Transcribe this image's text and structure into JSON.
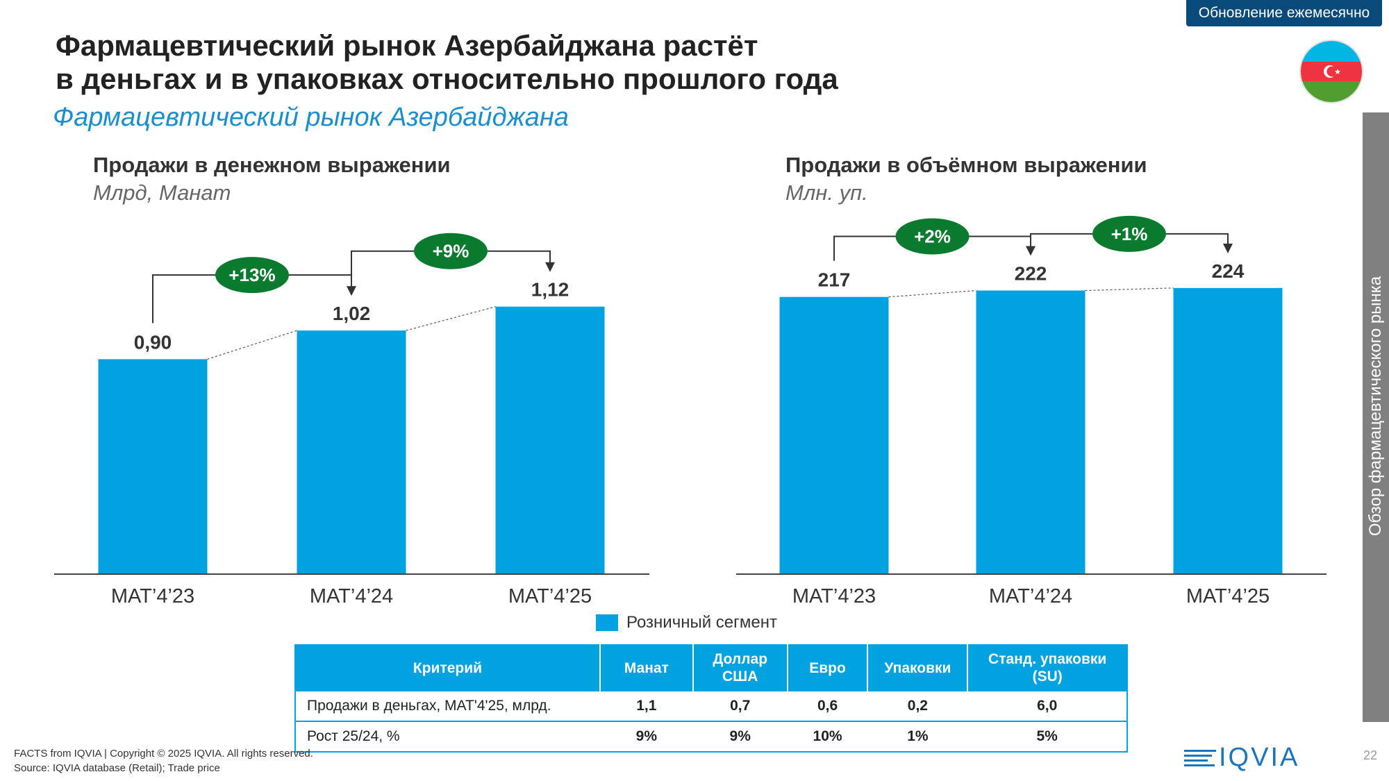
{
  "header": {
    "update_badge": "Обновление ежемесячно",
    "title_line1": "Фармацевтический рынок Азербайджана растёт",
    "title_line2": "в деньгах и в упаковках относительно прошлого года",
    "subtitle": "Фармацевтический рынок Азербайджана"
  },
  "side_tab": "Обзор фармацевтического рынка",
  "legend": {
    "label": "Розничный сегмент",
    "color": "#00a2e0"
  },
  "chart_data": [
    {
      "type": "bar",
      "title": "Продажи в денежном выражении",
      "unit": "Млрд, Манат",
      "categories": [
        "MAT’4’23",
        "MAT’4’24",
        "MAT’4’25"
      ],
      "values": [
        0.9,
        1.02,
        1.12
      ],
      "value_labels": [
        "0,90",
        "1,02",
        "1,12"
      ],
      "ylim": [
        0,
        1.25
      ],
      "growth": [
        {
          "from": 0,
          "to": 1,
          "label": "+13%"
        },
        {
          "from": 1,
          "to": 2,
          "label": "+9%"
        }
      ]
    },
    {
      "type": "bar",
      "title": "Продажи в объёмном выражении",
      "unit": "Млн. уп.",
      "categories": [
        "MAT’4’23",
        "MAT’4’24",
        "MAT’4’25"
      ],
      "values": [
        217,
        222,
        224
      ],
      "value_labels": [
        "217",
        "222",
        "224"
      ],
      "ylim": [
        0,
        225
      ],
      "growth": [
        {
          "from": 0,
          "to": 1,
          "label": "+2%"
        },
        {
          "from": 1,
          "to": 2,
          "label": "+1%"
        }
      ]
    }
  ],
  "table": {
    "headers": [
      "Критерий",
      "Манат",
      "Доллар США",
      "Евро",
      "Упаковки",
      "Станд. упаковки (SU)"
    ],
    "rows": [
      [
        "Продажи в деньгах,  MAT'4'25, млрд.",
        "1,1",
        "0,7",
        "0,6",
        "0,2",
        "6,0"
      ],
      [
        "Рост 25/24, %",
        "9%",
        "9%",
        "10%",
        "1%",
        "5%"
      ]
    ]
  },
  "footer": {
    "copyright": "FACTS from IQVIA | Copyright © 2025 IQVIA. All rights reserved.",
    "source": "Source: IQVIA database (Retail); Trade price",
    "logo": "IQVIA",
    "page": "22"
  },
  "colors": {
    "bar": "#00a2e0",
    "growth_badge": "#0a7a2f",
    "accent": "#0a4a7a"
  }
}
